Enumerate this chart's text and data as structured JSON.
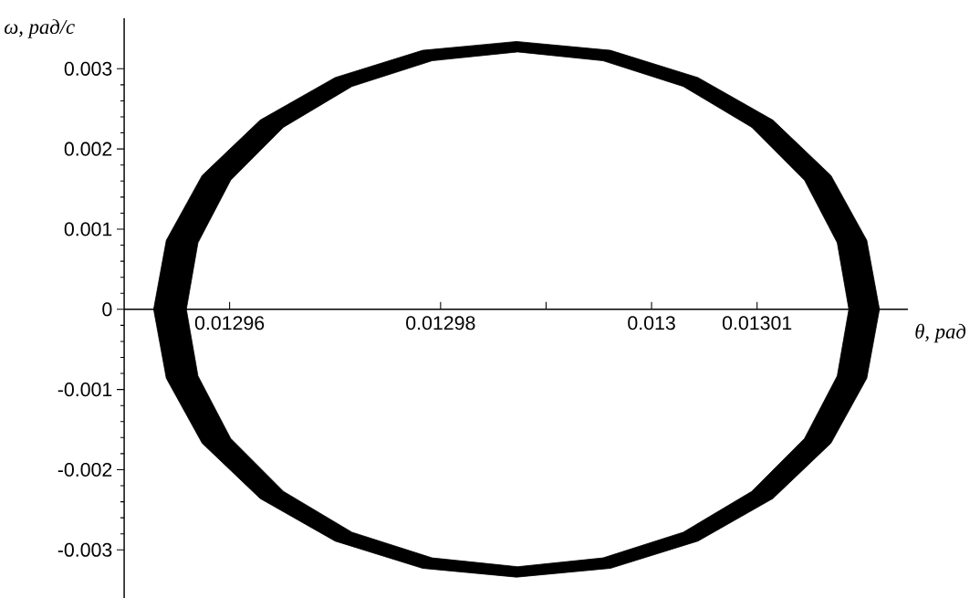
{
  "chart_data": {
    "type": "line",
    "xlabel": "θ, рад",
    "ylabel": "ω, рад/с",
    "xlim": [
      0.01295,
      0.0130243
    ],
    "ylim": [
      -0.0036,
      0.00363
    ],
    "xticks": [
      0.01296,
      0.01298,
      {
        "value": 0.01299,
        "label": null
      },
      0.013,
      0.01301,
      {
        "value": 0.01302,
        "label": null
      }
    ],
    "yticks": [
      -0.003,
      -0.002,
      -0.001,
      0,
      0.001,
      0.002,
      0.003
    ],
    "grid": false,
    "marker": "none",
    "series": [
      {
        "color": "#000000",
        "x": [
          0.0130216,
          0.0130204,
          0.013017,
          0.0130115,
          0.0130044,
          0.0129961,
          0.0129872,
          0.0129783,
          0.01297,
          0.0129629,
          0.0129574,
          0.012954,
          0.0129528,
          0.012954,
          0.0129574,
          0.0129629,
          0.01297,
          0.0129783,
          0.0129872,
          0.0129961,
          0.0130044,
          0.0130115,
          0.013017,
          0.0130204,
          0.0130216,
          0.0130187,
          0.0130176,
          0.0130145,
          0.0130095,
          0.013003,
          0.0129954,
          0.0129873,
          0.0129792,
          0.0129716,
          0.0129651,
          0.0129601,
          0.012957,
          0.0129559,
          0.012957,
          0.0129601,
          0.0129651,
          0.0129716,
          0.0129792,
          0.0129873,
          0.0129954,
          0.013003,
          0.0130095,
          0.0130145,
          0.0130176,
          0.0130187
        ],
        "values": [
          0,
          0.00086,
          0.00167,
          0.00236,
          0.00289,
          0.00323,
          0.00334,
          0.00323,
          0.00289,
          0.00236,
          0.00167,
          0.00086,
          0,
          -0.00086,
          -0.00167,
          -0.00236,
          -0.00289,
          -0.00323,
          -0.00334,
          -0.00323,
          -0.00289,
          -0.00236,
          -0.00167,
          -0.00086,
          0,
          0,
          -0.00083,
          -0.00161,
          -0.00227,
          -0.00278,
          -0.0031,
          -0.00321,
          -0.0031,
          -0.00278,
          -0.00227,
          -0.00161,
          -0.00083,
          0,
          0.00083,
          0.00161,
          0.00227,
          0.00278,
          0.0031,
          0.00321,
          0.0031,
          0.00278,
          0.00227,
          0.00161,
          0.00083,
          0
        ]
      }
    ]
  }
}
